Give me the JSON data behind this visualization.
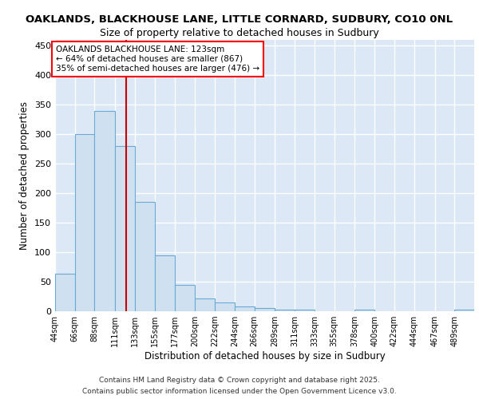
{
  "title_line1": "OAKLANDS, BLACKHOUSE LANE, LITTLE CORNARD, SUDBURY, CO10 0NL",
  "title_line2": "Size of property relative to detached houses in Sudbury",
  "xlabel": "Distribution of detached houses by size in Sudbury",
  "ylabel": "Number of detached properties",
  "bar_color": "#cfe0f0",
  "bar_edge_color": "#6aaad4",
  "background_color": "#dce8f5",
  "grid_color": "#ffffff",
  "red_line_x": 123,
  "annotation_title": "OAKLANDS BLACKHOUSE LANE: 123sqm",
  "annotation_line2": "← 64% of detached houses are smaller (867)",
  "annotation_line3": "35% of semi-detached houses are larger (476) →",
  "footer_line1": "Contains HM Land Registry data © Crown copyright and database right 2025.",
  "footer_line2": "Contains public sector information licensed under the Open Government Licence v3.0.",
  "categories": [
    "44sqm",
    "66sqm",
    "88sqm",
    "111sqm",
    "133sqm",
    "155sqm",
    "177sqm",
    "200sqm",
    "222sqm",
    "244sqm",
    "266sqm",
    "289sqm",
    "311sqm",
    "333sqm",
    "355sqm",
    "378sqm",
    "400sqm",
    "422sqm",
    "444sqm",
    "467sqm",
    "489sqm"
  ],
  "bin_edges": [
    44,
    66,
    88,
    111,
    133,
    155,
    177,
    200,
    222,
    244,
    266,
    289,
    311,
    333,
    355,
    378,
    400,
    422,
    444,
    467,
    489,
    511
  ],
  "values": [
    63,
    300,
    340,
    280,
    185,
    95,
    45,
    22,
    15,
    8,
    6,
    3,
    3,
    0,
    0,
    3,
    0,
    0,
    0,
    0,
    3
  ],
  "ylim": [
    0,
    460
  ],
  "yticks": [
    0,
    50,
    100,
    150,
    200,
    250,
    300,
    350,
    400,
    450
  ]
}
